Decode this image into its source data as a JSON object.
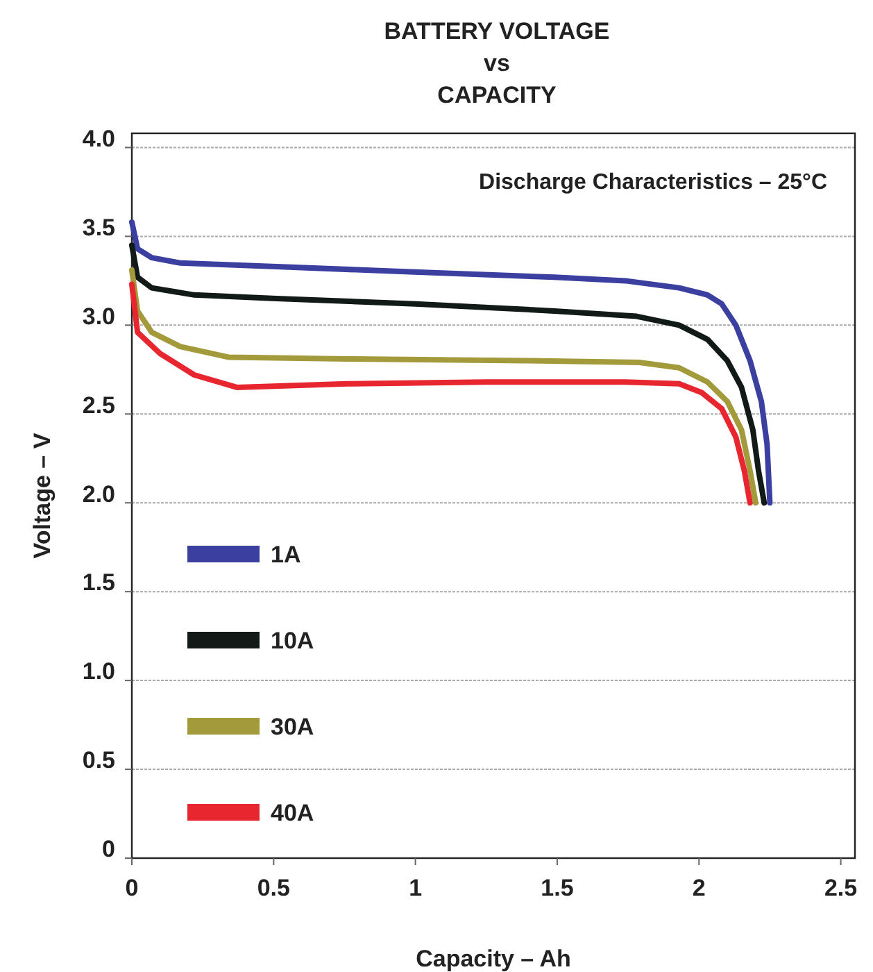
{
  "chart_data": {
    "type": "line",
    "title": "BATTERY VOLTAGE\nvs\nCAPACITY",
    "xlabel": "Capacity – Ah",
    "ylabel": "Voltage – V",
    "annotations": [
      "Discharge Characteristics – 25°C"
    ],
    "xlim": [
      0,
      2.55
    ],
    "ylim": [
      0,
      4.08
    ],
    "xticks": [
      0,
      0.5,
      1,
      1.5,
      2,
      2.5
    ],
    "yticks": [
      0,
      {
        "value": 0.5,
        "label": "0.5"
      },
      {
        "value": 1,
        "label": "1.0"
      },
      {
        "value": 1.5,
        "label": "1.5"
      },
      {
        "value": 2,
        "label": "2.0"
      },
      {
        "value": 2.5,
        "label": "2.5"
      },
      {
        "value": 3,
        "label": "3.0"
      },
      {
        "value": 3.5,
        "label": "3.5"
      },
      {
        "value": 4,
        "label": "4.0"
      }
    ],
    "grid": "y",
    "legend": "bottom left",
    "marker": "none",
    "line_style": "solid",
    "series": [
      {
        "name": "1A",
        "color": "#3a3fa0",
        "x": [
          0,
          0.02,
          0.07,
          0.17,
          0.51,
          0.98,
          1.49,
          1.74,
          1.93,
          2.03,
          2.08,
          2.13,
          2.18,
          2.22,
          2.24,
          2.25
        ],
        "values": [
          3.58,
          3.43,
          3.38,
          3.35,
          3.33,
          3.3,
          3.27,
          3.25,
          3.21,
          3.17,
          3.12,
          3.0,
          2.8,
          2.57,
          2.33,
          2.0
        ]
      },
      {
        "name": "10A",
        "color": "#111a16",
        "x": [
          0,
          0.02,
          0.07,
          0.22,
          0.51,
          1.0,
          1.49,
          1.78,
          1.93,
          2.03,
          2.1,
          2.15,
          2.19,
          2.21,
          2.23
        ],
        "values": [
          3.45,
          3.27,
          3.21,
          3.17,
          3.15,
          3.12,
          3.08,
          3.05,
          3.0,
          2.92,
          2.8,
          2.65,
          2.41,
          2.18,
          2.0
        ]
      },
      {
        "name": "30A",
        "color": "#a39a3c",
        "x": [
          0,
          0.02,
          0.07,
          0.17,
          0.34,
          0.76,
          1.39,
          1.79,
          1.93,
          2.03,
          2.1,
          2.15,
          2.18,
          2.2
        ],
        "values": [
          3.31,
          3.08,
          2.96,
          2.88,
          2.82,
          2.81,
          2.8,
          2.79,
          2.76,
          2.68,
          2.57,
          2.41,
          2.18,
          2.0
        ]
      },
      {
        "name": "40A",
        "color": "#e8262f",
        "x": [
          0,
          0.02,
          0.1,
          0.22,
          0.37,
          0.76,
          1.25,
          1.74,
          1.93,
          2.01,
          2.08,
          2.13,
          2.16,
          2.18
        ],
        "values": [
          3.23,
          2.96,
          2.84,
          2.72,
          2.65,
          2.67,
          2.68,
          2.68,
          2.67,
          2.62,
          2.53,
          2.37,
          2.18,
          2.0
        ]
      }
    ]
  }
}
